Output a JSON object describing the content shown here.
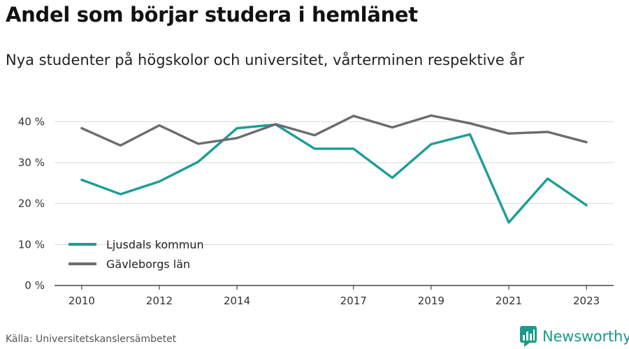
{
  "title": "Andel som börjar studera i hemlänet",
  "subtitle": "Nya studenter på högskolor och universitet, vårterminen respektive år",
  "source": "Källa: Universitetskanslersämbetet",
  "brand": {
    "name": "Newsworthy",
    "icon": "bar-chart-logo-icon",
    "color": "#1a9a8a"
  },
  "chart_data": {
    "type": "line",
    "x": [
      2010,
      2011,
      2012,
      2013,
      2014,
      2015,
      2016,
      2017,
      2018,
      2019,
      2020,
      2021,
      2022,
      2023
    ],
    "x_tick_labels": [
      "2010",
      "2012",
      "2014",
      "2017",
      "2019",
      "2021",
      "2023"
    ],
    "y_ticks": [
      0,
      10,
      20,
      30,
      40
    ],
    "y_tick_labels": [
      "0 %",
      "10 %",
      "20 %",
      "30 %",
      "40 %"
    ],
    "ylim": [
      0,
      45
    ],
    "xlim": [
      2009.3,
      2023.7
    ],
    "grid": true,
    "legend_position": "bottom-left",
    "series": [
      {
        "name": "Ljusdals kommun",
        "color": "#1a9e96",
        "values": [
          25.8,
          22.3,
          25.4,
          30.2,
          38.4,
          39.3,
          33.4,
          33.4,
          26.3,
          34.5,
          36.9,
          15.4,
          26.1,
          19.6
        ]
      },
      {
        "name": "Gävleborgs län",
        "color": "#6b6b70",
        "values": [
          38.4,
          34.2,
          39.1,
          34.6,
          36.0,
          39.4,
          36.7,
          41.4,
          38.6,
          41.5,
          39.6,
          37.1,
          37.5,
          35.0
        ]
      }
    ]
  }
}
